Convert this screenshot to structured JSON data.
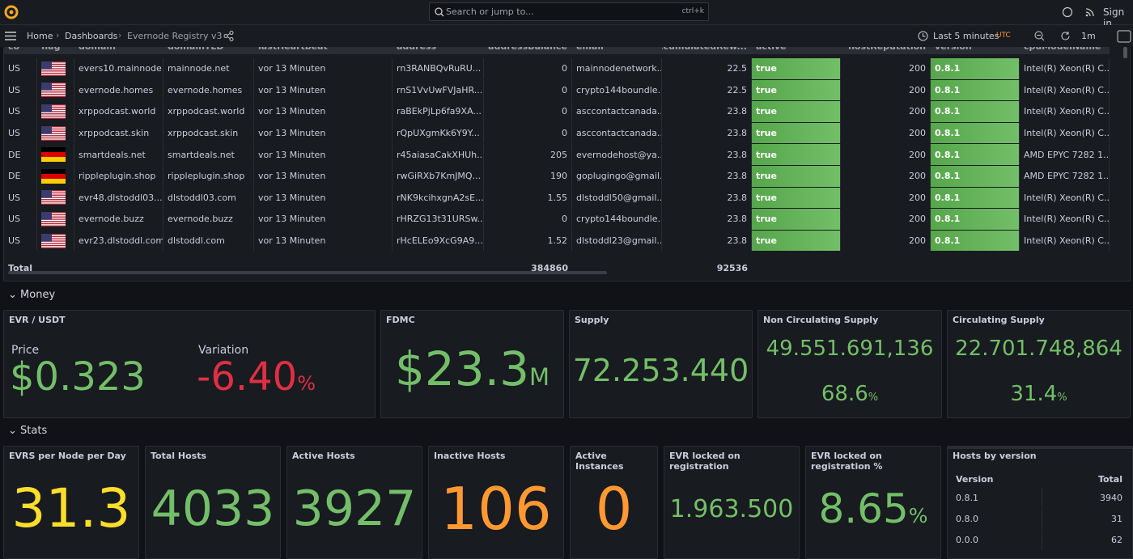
{
  "topbar": {
    "search": "Search or jump to...",
    "shortcut": "ctrl+k",
    "sign_in": "Sign in"
  },
  "breadcrumb": [
    "Home",
    "Dashboards",
    "Evernode Registry v3"
  ],
  "time": {
    "range": "Last 5 minutes",
    "zone": "UTC",
    "refresh": "1m"
  },
  "table": {
    "columns": [
      "co",
      "flag",
      "domain",
      "domainTLD",
      "lastHeartbeat",
      "address",
      "addressBalance",
      "email",
      "accumulatedRew...",
      "active",
      "hostReputation",
      "version",
      "cpuModelName"
    ],
    "rows": [
      [
        "US",
        "evers10.mainnode...",
        "mainnode.net",
        "vor 13 Minuten",
        "rn3RANBQvRuRU...",
        0,
        "mainnodenetwork...",
        22.5,
        "true",
        200,
        "0.8.1",
        "Intel(R) Xeon(R) C..."
      ],
      [
        "US",
        "evernode.homes",
        "evernode.homes",
        "vor 13 Minuten",
        "rnS1VvUwFVJaHR...",
        0,
        "crypto144boundle...",
        22.5,
        "true",
        200,
        "0.8.1",
        "Intel(R) Xeon(R) C..."
      ],
      [
        "US",
        "xrppodcast.world",
        "xrppodcast.world",
        "vor 13 Minuten",
        "raBEkPjLp6fa9XA...",
        0,
        "asccontactcanada...",
        23.8,
        "true",
        200,
        "0.8.1",
        "Intel(R) Xeon(R) C..."
      ],
      [
        "US",
        "xrppodcast.skin",
        "xrppodcast.skin",
        "vor 13 Minuten",
        "rQpUXgmKk6Y9Y...",
        0,
        "asccontactcanada...",
        23.8,
        "true",
        200,
        "0.8.1",
        "Intel(R) Xeon(R) C..."
      ],
      [
        "DE",
        "smartdeals.net",
        "smartdeals.net",
        "vor 13 Minuten",
        "r45aiasaCakXHUh...",
        205,
        "evernodehost@ya...",
        23.8,
        "true",
        200,
        "0.8.1",
        "AMD EPYC 7282 1..."
      ],
      [
        "DE",
        "rippleplugin.shop",
        "rippleplugin.shop",
        "vor 13 Minuten",
        "rwGiRXb7KmJMQ...",
        190,
        "goplugingo@gmail...",
        23.8,
        "true",
        200,
        "0.8.1",
        "AMD EPYC 7282 1..."
      ],
      [
        "US",
        "evr48.dlstoddl03....",
        "dlstoddl03.com",
        "vor 13 Minuten",
        "rNK9kcihxgnA2sE...",
        1.55,
        "dlstoddl50@gmail....",
        23.8,
        "true",
        200,
        "0.8.1",
        "Intel(R) Xeon(R) C..."
      ],
      [
        "US",
        "evernode.buzz",
        "evernode.buzz",
        "vor 13 Minuten",
        "rHRZG13t31URSw...",
        0,
        "crypto144boundle...",
        23.8,
        "true",
        200,
        "0.8.1",
        "Intel(R) Xeon(R) C..."
      ],
      [
        "US",
        "evr23.dlstoddl.com",
        "dlstoddl.com",
        "vor 13 Minuten",
        "rHcELEo9XcG9A9...",
        1.52,
        "dlstoddl23@gmail...",
        23.8,
        "true",
        200,
        "0.8.1",
        "Intel(R) Xeon(R) C..."
      ]
    ],
    "total": {
      "label": "Total",
      "addressBalance": 384860,
      "accumulatedReward": 92536
    }
  },
  "money": {
    "title": "Money",
    "panels": [
      {
        "title": "EVR / USDT",
        "stats": [
          {
            "label": "Price",
            "value": "$0.323"
          },
          {
            "label": "Variation",
            "value": "-6.40",
            "unit": "%"
          }
        ]
      },
      {
        "title": "FDMC",
        "stats": [
          {
            "value": "$23.3",
            "unit": "M"
          }
        ]
      },
      {
        "title": "Supply",
        "stats": [
          {
            "value": "72.253.440"
          }
        ]
      },
      {
        "title": "Non Circulating Supply",
        "stats": [
          {
            "value": "49.551.691,136"
          },
          {
            "value": "68.6",
            "unit": "%"
          }
        ]
      },
      {
        "title": "Circulating Supply",
        "stats": [
          {
            "value": "22.701.748,864"
          },
          {
            "value": "31.4",
            "unit": "%"
          }
        ]
      }
    ]
  },
  "stats": {
    "title": "Stats",
    "panels": [
      {
        "title": "EVRS per Node per Day",
        "value": 31.3
      },
      {
        "title": "Total Hosts",
        "value": 4033
      },
      {
        "title": "Active Hosts",
        "value": 3927
      },
      {
        "title": "Inactive Hosts",
        "value": 106
      },
      {
        "title": "Active Instances",
        "value": 0
      },
      {
        "title": "EVR locked on registration",
        "value": "1.963.500"
      },
      {
        "title": "EVR locked on registration %",
        "value": 8.65,
        "unit": "%"
      }
    ],
    "hosts_by_version": {
      "title": "Hosts by version",
      "columns": [
        "Version",
        "Total"
      ],
      "rows": [
        [
          "0.8.1",
          3940
        ],
        [
          "0.8.0",
          31
        ],
        [
          "0.0.0",
          62
        ]
      ]
    }
  }
}
